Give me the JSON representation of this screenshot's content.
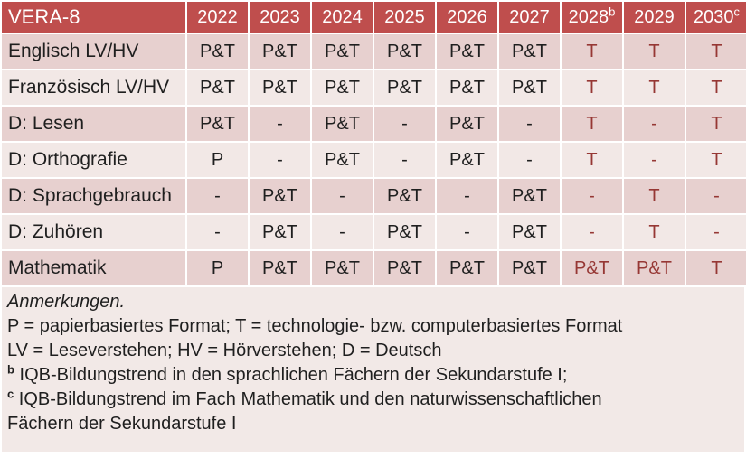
{
  "table": {
    "header": {
      "label": "VERA-8",
      "years": [
        {
          "text": "2022",
          "sup": ""
        },
        {
          "text": "2023",
          "sup": ""
        },
        {
          "text": "2024",
          "sup": ""
        },
        {
          "text": "2025",
          "sup": ""
        },
        {
          "text": "2026",
          "sup": ""
        },
        {
          "text": "2027",
          "sup": ""
        },
        {
          "text": "2028",
          "sup": "b"
        },
        {
          "text": "2029",
          "sup": ""
        },
        {
          "text": "2030",
          "sup": "c"
        }
      ]
    },
    "rows": [
      {
        "label": "Englisch LV/HV",
        "values": [
          "P&T",
          "P&T",
          "P&T",
          "P&T",
          "P&T",
          "P&T",
          "T",
          "T",
          "T"
        ]
      },
      {
        "label": "Französisch LV/HV",
        "values": [
          "P&T",
          "P&T",
          "P&T",
          "P&T",
          "P&T",
          "P&T",
          "T",
          "T",
          "T"
        ]
      },
      {
        "label": "D: Lesen",
        "values": [
          "P&T",
          "-",
          "P&T",
          "-",
          "P&T",
          "-",
          "T",
          "-",
          "T"
        ]
      },
      {
        "label": "D: Orthografie",
        "values": [
          "P",
          "-",
          "P&T",
          "-",
          "P&T",
          "-",
          "T",
          "-",
          "T"
        ]
      },
      {
        "label": "D: Sprachgebrauch",
        "values": [
          "-",
          "P&T",
          "-",
          "P&T",
          "-",
          "P&T",
          "-",
          "T",
          "-"
        ]
      },
      {
        "label": "D: Zuhören",
        "values": [
          "-",
          "P&T",
          "-",
          "P&T",
          "-",
          "P&T",
          "-",
          "T",
          "-"
        ]
      },
      {
        "label": "Mathematik",
        "values": [
          "P",
          "P&T",
          "P&T",
          "P&T",
          "P&T",
          "P&T",
          "P&T",
          "P&T",
          "T"
        ]
      }
    ]
  },
  "notes": {
    "title": "Anmerkungen.",
    "formats_line": "P = papierbasiertes Format; T = technologie- bzw. computerbasiertes Format",
    "abbrev_line": "LV = Leseverstehen; HV = Hörverstehen; D = Deutsch",
    "note_b_sup": "b",
    "note_b_text": "IQB-Bildungstrend in den sprachlichen Fächern der Sekundarstufe I;",
    "note_c_sup": "c",
    "note_c_line1": "IQB-Bildungstrend im Fach Mathematik und den naturwissenschaftlichen",
    "note_c_line2": "Fächern der Sekundarstufe I"
  },
  "colors": {
    "header_bg": "#BF4E4D",
    "header_text": "#FFFFFF",
    "row_band_dark": "#E7D0CF",
    "row_band_light": "#F2E8E6",
    "notes_bg": "#F2E9E7",
    "tech_value_text": "#963734",
    "body_text": "#1F1F1F",
    "gridline": "#FFFFFF"
  }
}
